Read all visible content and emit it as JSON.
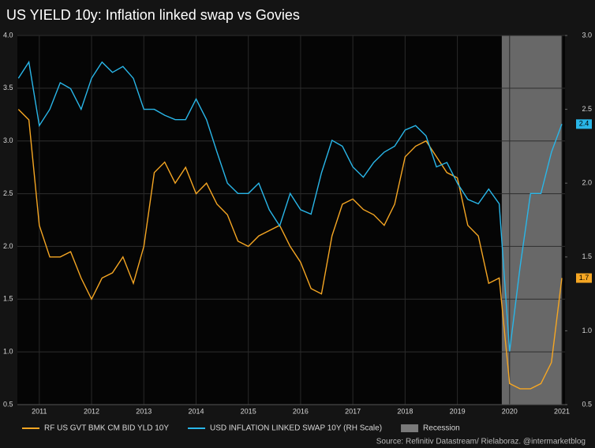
{
  "chart_data": {
    "type": "line",
    "title": "US YIELD 10y: Inflation linked swap vs Govies",
    "source": "Source: Refinitiv Datastream/ Rielaboraz. @intermarketblog",
    "x": [
      2010.6,
      2010.8,
      2011.0,
      2011.2,
      2011.4,
      2011.6,
      2011.8,
      2012.0,
      2012.2,
      2012.4,
      2012.6,
      2012.8,
      2013.0,
      2013.2,
      2013.4,
      2013.6,
      2013.8,
      2014.0,
      2014.2,
      2014.4,
      2014.6,
      2014.8,
      2015.0,
      2015.2,
      2015.4,
      2015.6,
      2015.8,
      2016.0,
      2016.2,
      2016.4,
      2016.6,
      2016.8,
      2017.0,
      2017.2,
      2017.4,
      2017.6,
      2017.8,
      2018.0,
      2018.2,
      2018.4,
      2018.6,
      2018.8,
      2019.0,
      2019.2,
      2019.4,
      2019.6,
      2019.8,
      2020.0,
      2020.2,
      2020.4,
      2020.6,
      2020.8,
      2021.0
    ],
    "series": [
      {
        "name": "RF US GVT BMK CM BID YLD 10Y",
        "color": "#f5a623",
        "axis": "y",
        "values": [
          3.3,
          3.2,
          2.2,
          1.9,
          1.9,
          1.95,
          1.7,
          1.5,
          1.7,
          1.75,
          1.9,
          1.65,
          2.0,
          2.7,
          2.8,
          2.6,
          2.75,
          2.5,
          2.6,
          2.4,
          2.3,
          2.05,
          2.0,
          2.1,
          2.15,
          2.2,
          2.0,
          1.85,
          1.6,
          1.55,
          2.1,
          2.4,
          2.45,
          2.35,
          2.3,
          2.2,
          2.4,
          2.85,
          2.95,
          3.0,
          2.85,
          2.7,
          2.65,
          2.2,
          2.1,
          1.65,
          1.7,
          0.7,
          0.65,
          0.65,
          0.7,
          0.9,
          1.7
        ]
      },
      {
        "name": "USD INFLATION LINKED SWAP 10Y (RH Scale)",
        "color": "#29b6e8",
        "axis": "y2",
        "values": [
          2.71,
          2.82,
          2.39,
          2.5,
          2.68,
          2.64,
          2.5,
          2.71,
          2.82,
          2.75,
          2.79,
          2.71,
          2.5,
          2.5,
          2.46,
          2.43,
          2.43,
          2.57,
          2.43,
          2.21,
          2.0,
          1.93,
          1.93,
          2.0,
          1.82,
          1.71,
          1.93,
          1.82,
          1.79,
          2.07,
          2.29,
          2.25,
          2.11,
          2.04,
          2.14,
          2.21,
          2.25,
          2.36,
          2.39,
          2.32,
          2.11,
          2.14,
          2.0,
          1.89,
          1.86,
          1.96,
          1.86,
          0.86,
          1.43,
          1.93,
          1.93,
          2.21,
          2.4
        ]
      }
    ],
    "recession": {
      "name": "Recession",
      "start": 2019.85,
      "end": 2021.0,
      "color": "#7a7a7a"
    },
    "xlim": [
      2010.58,
      2021.06
    ],
    "xticks": [
      2011,
      2012,
      2013,
      2014,
      2015,
      2016,
      2017,
      2018,
      2019,
      2020,
      2021
    ],
    "ylim": [
      0.5,
      4.0
    ],
    "yticks": [
      0.5,
      {
        "value": 1,
        "label": "1.0"
      },
      1.5,
      {
        "value": 2,
        "label": "2.0"
      },
      2.5,
      {
        "value": 3,
        "label": "3.0"
      },
      3.5,
      {
        "value": 4,
        "label": "4.0"
      }
    ],
    "y2lim": [
      0.5,
      3.0
    ],
    "y2ticks": [
      0.5,
      {
        "value": 1,
        "label": "1.0"
      },
      1.5,
      {
        "value": 2,
        "label": "2.0"
      },
      2.5,
      {
        "value": 3,
        "label": "3.0"
      }
    ],
    "grid": true
  }
}
